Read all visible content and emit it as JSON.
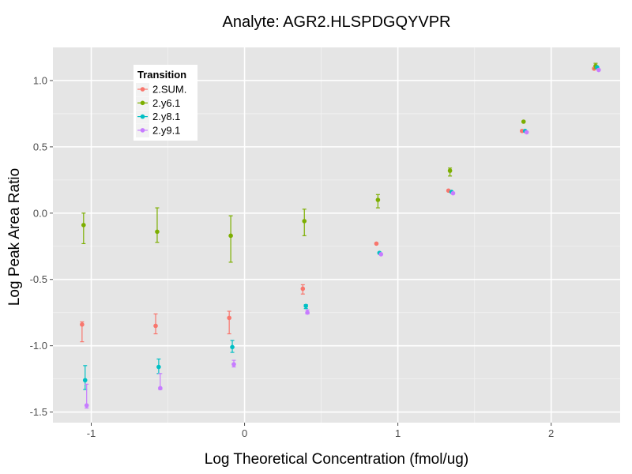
{
  "chart_data": {
    "type": "scatter",
    "title": "Analyte: AGR2.HLSPDGQYVPR",
    "xlabel": "Log Theoretical Concentration (fmol/ug)",
    "ylabel": "Log Peak Area Ratio",
    "xlim": [
      -1.25,
      2.45
    ],
    "ylim": [
      -1.58,
      1.25
    ],
    "x_ticks": [
      -1,
      0,
      1,
      2
    ],
    "x_tick_labels": [
      "-1",
      "0",
      "1",
      "2"
    ],
    "y_ticks": [
      -1.5,
      -1.0,
      -0.5,
      0.0,
      0.5,
      1.0
    ],
    "y_tick_labels": [
      "-1.5",
      "-1.0",
      "-0.5",
      "0.0",
      "0.5",
      "1.0"
    ],
    "legend": {
      "title": "Transition",
      "position": "top-left"
    },
    "series": [
      {
        "name": "2.SUM.",
        "color": "#F8766D",
        "points": [
          {
            "x": -1.06,
            "y": -0.84,
            "ymin": -0.97,
            "ymax": -0.82
          },
          {
            "x": -0.58,
            "y": -0.85,
            "ymin": -0.91,
            "ymax": -0.76
          },
          {
            "x": -0.1,
            "y": -0.79,
            "ymin": -0.91,
            "ymax": -0.74
          },
          {
            "x": 0.38,
            "y": -0.57,
            "ymin": -0.61,
            "ymax": -0.54
          },
          {
            "x": 0.86,
            "y": -0.23
          },
          {
            "x": 1.33,
            "y": 0.17
          },
          {
            "x": 1.81,
            "y": 0.62
          },
          {
            "x": 2.28,
            "y": 1.09
          }
        ]
      },
      {
        "name": "2.y6.1",
        "color": "#7CAE00",
        "points": [
          {
            "x": -1.05,
            "y": -0.09,
            "ymin": -0.23,
            "ymax": 0.0
          },
          {
            "x": -0.57,
            "y": -0.14,
            "ymin": -0.22,
            "ymax": 0.04
          },
          {
            "x": -0.09,
            "y": -0.17,
            "ymin": -0.37,
            "ymax": -0.02
          },
          {
            "x": 0.39,
            "y": -0.06,
            "ymin": -0.17,
            "ymax": 0.03
          },
          {
            "x": 0.87,
            "y": 0.1,
            "ymin": 0.04,
            "ymax": 0.14
          },
          {
            "x": 1.34,
            "y": 0.32,
            "ymin": 0.28,
            "ymax": 0.34
          },
          {
            "x": 1.82,
            "y": 0.69
          },
          {
            "x": 2.29,
            "y": 1.11,
            "ymin": 1.09,
            "ymax": 1.13
          }
        ]
      },
      {
        "name": "2.y8.1",
        "color": "#00BFC4",
        "points": [
          {
            "x": -1.04,
            "y": -1.26,
            "ymin": -1.33,
            "ymax": -1.15
          },
          {
            "x": -0.56,
            "y": -1.16,
            "ymin": -1.21,
            "ymax": -1.1
          },
          {
            "x": -0.08,
            "y": -1.01,
            "ymin": -1.05,
            "ymax": -0.96
          },
          {
            "x": 0.4,
            "y": -0.7,
            "ymin": -0.72,
            "ymax": -0.69
          },
          {
            "x": 0.88,
            "y": -0.3
          },
          {
            "x": 1.35,
            "y": 0.16
          },
          {
            "x": 1.83,
            "y": 0.62
          },
          {
            "x": 2.3,
            "y": 1.1
          }
        ]
      },
      {
        "name": "2.y9.1",
        "color": "#C77CFF",
        "points": [
          {
            "x": -1.03,
            "y": -1.45,
            "ymin": -1.47,
            "ymax": -1.29
          },
          {
            "x": -0.55,
            "y": -1.32,
            "ymin": -1.33,
            "ymax": -1.21
          },
          {
            "x": -0.07,
            "y": -1.14,
            "ymin": -1.16,
            "ymax": -1.11
          },
          {
            "x": 0.41,
            "y": -0.75,
            "ymin": -0.76,
            "ymax": -0.73
          },
          {
            "x": 0.89,
            "y": -0.31
          },
          {
            "x": 1.36,
            "y": 0.15
          },
          {
            "x": 1.84,
            "y": 0.61
          },
          {
            "x": 2.31,
            "y": 1.08
          }
        ]
      }
    ]
  }
}
